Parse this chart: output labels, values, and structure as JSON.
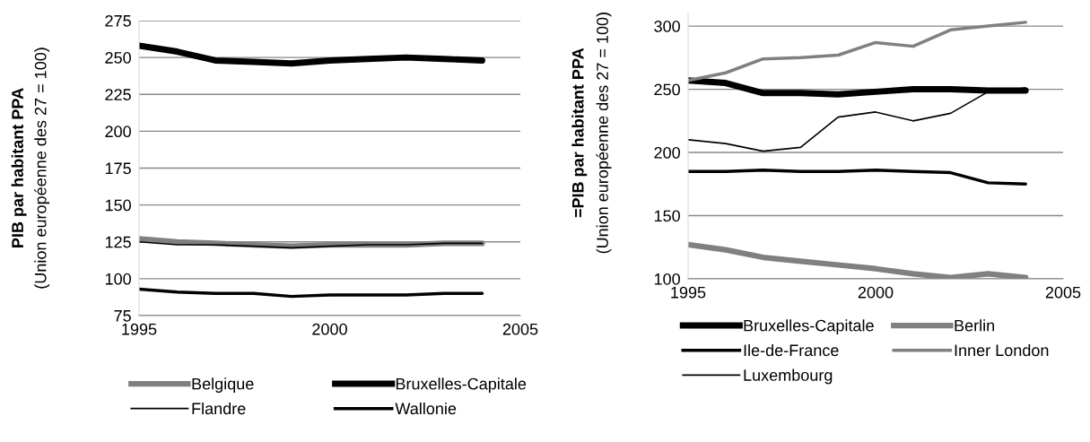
{
  "chart_data": [
    {
      "type": "line",
      "ylabel": "PIB par habitant PPA\n(Union européenne des 27 = 100)",
      "x": [
        1995,
        1996,
        1997,
        1998,
        1999,
        2000,
        2001,
        2002,
        2003,
        2004
      ],
      "xlim": [
        1995,
        2005
      ],
      "xticks": [
        1995,
        2000,
        2005
      ],
      "ylim": [
        75,
        275
      ],
      "yticks": [
        75,
        100,
        125,
        150,
        175,
        200,
        225,
        250,
        275
      ],
      "grid": "y",
      "legend": "bottom",
      "marker": "none",
      "series": [
        {
          "name": "Belgique",
          "color": "#808080",
          "values": [
            127,
            125,
            124,
            123,
            122,
            123,
            123,
            123,
            124,
            124
          ]
        },
        {
          "name": "Bruxelles-Capitale",
          "color": "#000000",
          "values": [
            258,
            254,
            248,
            247,
            246,
            248,
            249,
            250,
            249,
            248
          ]
        },
        {
          "name": "Flandre",
          "color": "#000000",
          "values": [
            125,
            123,
            123,
            122,
            121,
            122,
            123,
            123,
            124,
            124
          ]
        },
        {
          "name": "Wallonie",
          "color": "#000000",
          "values": [
            93,
            91,
            90,
            90,
            88,
            89,
            89,
            89,
            90,
            90
          ]
        }
      ]
    },
    {
      "type": "line",
      "ylabel": "=PIB par habitant PPA\n(Union européenne des 27 = 100)",
      "x": [
        1995,
        1996,
        1997,
        1998,
        1999,
        2000,
        2001,
        2002,
        2003,
        2004
      ],
      "xlim": [
        1995,
        2005
      ],
      "xticks": [
        1995,
        2000,
        2005
      ],
      "ylim": [
        100,
        310
      ],
      "yticks": [
        100,
        150,
        200,
        250,
        300
      ],
      "grid": "y",
      "legend": "bottom",
      "marker": "none",
      "series": [
        {
          "name": "Bruxelles-Capitale",
          "color": "#000000",
          "values": [
            257,
            255,
            247,
            247,
            246,
            248,
            250,
            250,
            249,
            249
          ]
        },
        {
          "name": "Berlin",
          "color": "#808080",
          "values": [
            127,
            123,
            117,
            114,
            111,
            108,
            104,
            101,
            104,
            101
          ]
        },
        {
          "name": "Ile-de-France",
          "color": "#000000",
          "values": [
            185,
            185,
            186,
            185,
            185,
            186,
            185,
            184,
            176,
            175
          ]
        },
        {
          "name": "Inner London",
          "color": "#808080",
          "values": [
            257,
            263,
            274,
            275,
            277,
            287,
            284,
            297,
            300,
            303
          ]
        },
        {
          "name": "Luxembourg",
          "color": "#000000",
          "values": [
            210,
            207,
            201,
            204,
            228,
            232,
            225,
            231,
            248,
            251
          ]
        }
      ]
    }
  ]
}
